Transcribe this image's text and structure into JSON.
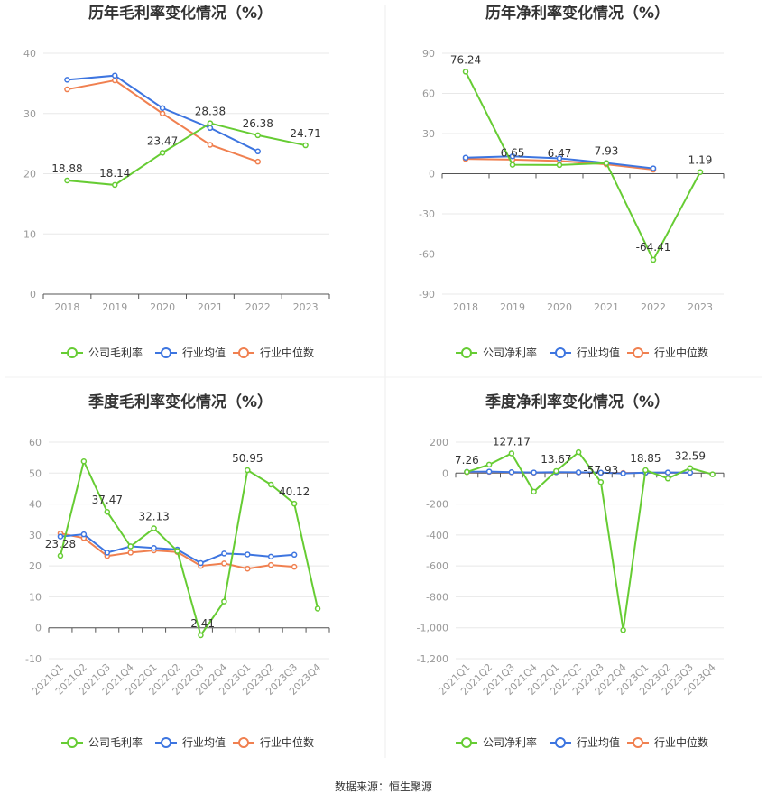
{
  "colors": {
    "company": "#66cc33",
    "avg": "#3d75e0",
    "median": "#f08050",
    "grid": "#e8e8e8",
    "axis": "#555555"
  },
  "source_text": "数据来源：恒生聚源",
  "chart_data": [
    {
      "type": "line",
      "title": "历年毛利率变化情况（%）",
      "categories": [
        "2018",
        "2019",
        "2020",
        "2021",
        "2022",
        "2023"
      ],
      "ylim": [
        0,
        40
      ],
      "yticks": [
        "0",
        "10",
        "20",
        "30",
        "40"
      ],
      "grid": true,
      "legend_position": "bottom",
      "series": [
        {
          "name": "公司毛利率",
          "values": [
            18.88,
            18.14,
            23.47,
            28.38,
            26.38,
            24.71
          ],
          "labels": [
            "18.88",
            "18.14",
            "23.47",
            "28.38",
            "26.38",
            "24.71"
          ]
        },
        {
          "name": "行业均值",
          "values": [
            35.6,
            36.3,
            30.9,
            27.6,
            23.7,
            null
          ]
        },
        {
          "name": "行业中位数",
          "values": [
            34.0,
            35.5,
            30.0,
            24.8,
            22.0,
            null
          ]
        }
      ]
    },
    {
      "type": "line",
      "title": "历年净利率变化情况（%）",
      "categories": [
        "2018",
        "2019",
        "2020",
        "2021",
        "2022",
        "2023"
      ],
      "ylim": [
        -90,
        90
      ],
      "yticks": [
        "-90",
        "-60",
        "-30",
        "0",
        "30",
        "60",
        "90"
      ],
      "grid": true,
      "legend_position": "bottom",
      "series": [
        {
          "name": "公司净利率",
          "values": [
            76.24,
            6.65,
            6.47,
            7.93,
            -64.41,
            1.19
          ],
          "labels": [
            "76.24",
            "6.65",
            "6.47",
            "7.93",
            "-64.41",
            "1.19"
          ]
        },
        {
          "name": "行业均值",
          "values": [
            12.0,
            13.0,
            11.5,
            8.0,
            4.0,
            null
          ]
        },
        {
          "name": "行业中位数",
          "values": [
            11.0,
            10.5,
            9.5,
            7.0,
            3.0,
            null
          ]
        }
      ]
    },
    {
      "type": "line",
      "title": "季度毛利率变化情况（%）",
      "categories": [
        "2021Q1",
        "2021Q2",
        "2021Q3",
        "2021Q4",
        "2022Q1",
        "2022Q2",
        "2022Q3",
        "2022Q4",
        "2023Q1",
        "2023Q2",
        "2023Q3",
        "2023Q4"
      ],
      "ylim": [
        -10,
        60
      ],
      "yticks": [
        "-10",
        "0",
        "10",
        "20",
        "30",
        "40",
        "50",
        "60"
      ],
      "grid": true,
      "legend_position": "bottom",
      "series": [
        {
          "name": "公司毛利率",
          "values": [
            23.28,
            53.8,
            37.47,
            26.3,
            32.13,
            24.8,
            -2.41,
            8.5,
            50.95,
            46.3,
            40.12,
            6.2
          ],
          "labels": [
            "23.28",
            "",
            "37.47",
            "",
            "32.13",
            "",
            "-2.41",
            "",
            "50.95",
            "",
            "40.12",
            ""
          ]
        },
        {
          "name": "行业均值",
          "values": [
            29.5,
            30.2,
            24.3,
            26.3,
            25.8,
            25.3,
            20.9,
            24.0,
            23.7,
            23.0,
            23.6,
            null
          ]
        },
        {
          "name": "行业中位数",
          "values": [
            30.5,
            29.0,
            23.2,
            24.3,
            25.0,
            24.5,
            20.0,
            20.8,
            19.1,
            20.3,
            19.7,
            null
          ]
        }
      ]
    },
    {
      "type": "line",
      "title": "季度净利率变化情况（%）",
      "categories": [
        "2021Q1",
        "2021Q2",
        "2021Q3",
        "2021Q4",
        "2022Q1",
        "2022Q2",
        "2022Q3",
        "2022Q4",
        "2023Q1",
        "2023Q2",
        "2023Q3",
        "2023Q4"
      ],
      "ylim": [
        -1200,
        200
      ],
      "yticks": [
        "-1,200",
        "-1,000",
        "-800",
        "-600",
        "-400",
        "-200",
        "0",
        "200"
      ],
      "grid": true,
      "legend_position": "bottom",
      "series": [
        {
          "name": "公司净利率",
          "values": [
            7.26,
            55.0,
            127.17,
            -120.0,
            13.67,
            135.0,
            -57.93,
            -1015.0,
            18.85,
            -35.0,
            32.59,
            -8.0
          ],
          "labels": [
            "7.26",
            "",
            "127.17",
            "",
            "13.67",
            "",
            "-57.93",
            "",
            "18.85",
            "",
            "32.59",
            ""
          ]
        },
        {
          "name": "行业均值",
          "values": [
            8.0,
            10.0,
            6.0,
            4.0,
            6.0,
            5.0,
            3.0,
            -2.0,
            3.0,
            4.0,
            3.0,
            null
          ]
        },
        {
          "name": "行业中位数",
          "values": [
            6.0,
            8.0,
            5.0,
            3.0,
            5.0,
            4.0,
            2.0,
            1.0,
            2.0,
            3.0,
            2.0,
            null
          ]
        }
      ]
    }
  ]
}
